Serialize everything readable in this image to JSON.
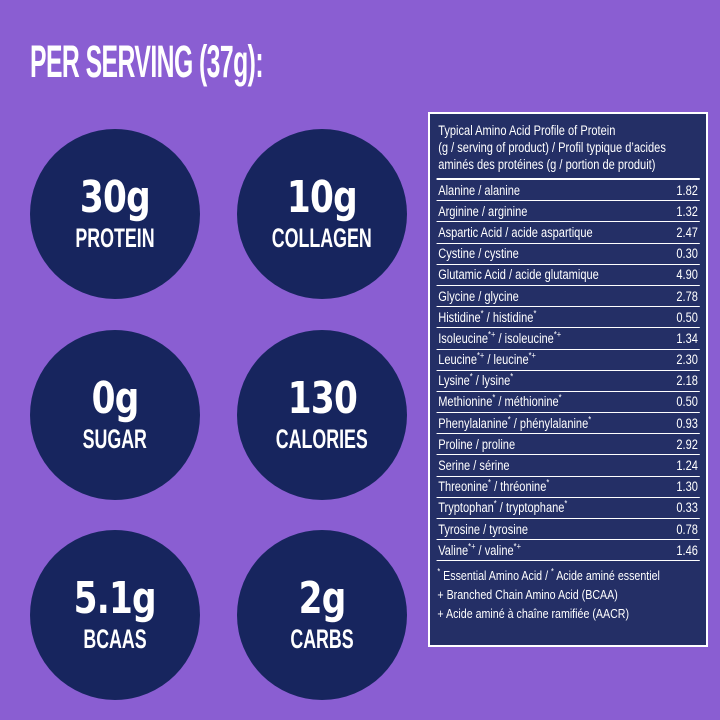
{
  "title": "PER SERVING (37g):",
  "badges": [
    {
      "value": "30g",
      "label": "PROTEIN"
    },
    {
      "value": "10g",
      "label": "COLLAGEN"
    },
    {
      "value": "0g",
      "label": "SUGAR"
    },
    {
      "value": "130",
      "label": "CALORIES"
    },
    {
      "value": "5.1g",
      "label": "BCAAS"
    },
    {
      "value": "2g",
      "label": "CARBS"
    }
  ],
  "table": {
    "header_lines": [
      "Typical Amino Acid Profile of Protein",
      "(g / serving of product) / Profil typique d’acides",
      "aminés des protéines (g / portion de produit)"
    ],
    "rows": [
      {
        "name": "Alanine / alanine",
        "value": "1.82"
      },
      {
        "name": "Arginine / arginine",
        "value": "1.32"
      },
      {
        "name": "Aspartic Acid / acide aspartique",
        "value": "2.47"
      },
      {
        "name": "Cystine / cystine",
        "value": "0.30"
      },
      {
        "name": "Glutamic Acid / acide glutamique",
        "value": "4.90"
      },
      {
        "name": "Glycine / glycine",
        "value": "2.78"
      },
      {
        "name": "Histidine* / histidine*",
        "value": "0.50"
      },
      {
        "name": "Isoleucine*+ / isoleucine*+",
        "value": "1.34"
      },
      {
        "name": "Leucine*+ / leucine*+",
        "value": "2.30"
      },
      {
        "name": "Lysine* / lysine*",
        "value": "2.18"
      },
      {
        "name": "Methionine* / méthionine*",
        "value": "0.50"
      },
      {
        "name": "Phenylalanine* / phénylalanine*",
        "value": "0.93"
      },
      {
        "name": "Proline / proline",
        "value": "2.92"
      },
      {
        "name": "Serine / sérine",
        "value": "1.24"
      },
      {
        "name": "Threonine* / thréonine*",
        "value": "1.30"
      },
      {
        "name": "Tryptophan* / tryptophane*",
        "value": "0.33"
      },
      {
        "name": "Tyrosine / tyrosine",
        "value": "0.78"
      },
      {
        "name": "Valine*+ / valine*+",
        "value": "1.46"
      }
    ],
    "footnotes": [
      "* Essential Amino Acid / * Acide aminé essentiel",
      "+ Branched Chain Amino Acid (BCAA)",
      "+ Acide aminé à chaîne ramifiée (AACR)"
    ]
  },
  "colors": {
    "background_purple": "#8a5ed2",
    "circle_navy": "#17255e",
    "table_navy": "#242f66",
    "text_white": "#ffffff"
  }
}
